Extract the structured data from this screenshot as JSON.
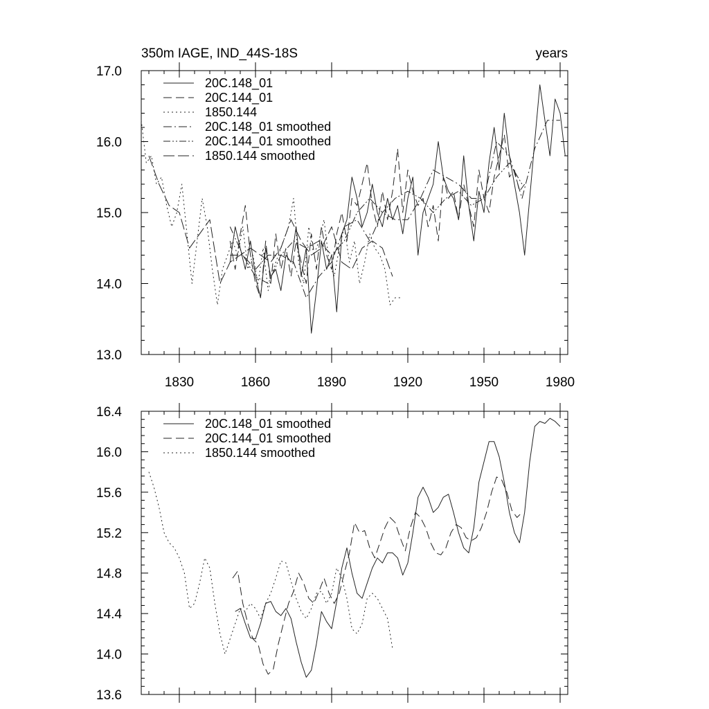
{
  "figure": {
    "title_left": "350m IAGE, IND_44S-18S",
    "title_right": "years"
  },
  "chart_data": [
    {
      "type": "line",
      "xlim": [
        1815,
        1983
      ],
      "ylim": [
        13.0,
        17.0
      ],
      "x_ticks": [
        1830,
        1860,
        1890,
        1920,
        1950,
        1980
      ],
      "x_tick_labels": [
        "1830",
        "1860",
        "1890",
        "1920",
        "1950",
        "1980"
      ],
      "y_ticks": [
        13.0,
        14.0,
        15.0,
        16.0,
        17.0
      ],
      "y_tick_labels": [
        "13.0",
        "14.0",
        "15.0",
        "16.0",
        "17.0"
      ],
      "legend_placement": "top-left",
      "series": [
        {
          "name": "20C.148_01",
          "style": "solid",
          "x": [
            1850,
            1852,
            1854,
            1856,
            1858,
            1860,
            1862,
            1864,
            1866,
            1868,
            1870,
            1872,
            1874,
            1876,
            1878,
            1880,
            1882,
            1884,
            1886,
            1888,
            1890,
            1892,
            1894,
            1896,
            1898,
            1900,
            1902,
            1904,
            1906,
            1908,
            1910,
            1912,
            1914,
            1916,
            1918,
            1920,
            1922,
            1924,
            1926,
            1928,
            1930,
            1932,
            1934,
            1936,
            1938,
            1940,
            1942,
            1944,
            1946,
            1948,
            1950,
            1952,
            1954,
            1956,
            1958,
            1960,
            1962,
            1964,
            1966,
            1968,
            1970,
            1972,
            1974,
            1976,
            1978,
            1980,
            1982
          ],
          "values": [
            14.3,
            14.8,
            14.5,
            14.2,
            14.6,
            14.1,
            13.8,
            14.5,
            14.1,
            14.2,
            13.9,
            14.4,
            14.3,
            14.8,
            14.1,
            14.5,
            13.3,
            13.9,
            14.6,
            14.2,
            14.4,
            13.6,
            14.7,
            14.9,
            15.5,
            15.2,
            14.8,
            15.0,
            15.4,
            15.0,
            14.8,
            15.2,
            14.9,
            15.1,
            14.7,
            15.2,
            15.5,
            14.4,
            15.0,
            15.2,
            15.4,
            16.0,
            15.5,
            15.3,
            15.2,
            14.9,
            15.8,
            15.1,
            14.6,
            15.3,
            15.0,
            15.7,
            16.2,
            15.6,
            16.4,
            15.8,
            15.4,
            15.0,
            14.4,
            15.2,
            16.0,
            16.8,
            16.3,
            15.8,
            16.6,
            16.4,
            15.8
          ]
        },
        {
          "name": "20C.144_01",
          "style": "dashed",
          "x": [
            1850,
            1852,
            1854,
            1856,
            1858,
            1860,
            1862,
            1864,
            1866,
            1868,
            1870,
            1872,
            1874,
            1876,
            1878,
            1880,
            1882,
            1884,
            1886,
            1888,
            1890,
            1892,
            1894,
            1896,
            1898,
            1900,
            1902,
            1904,
            1906,
            1908,
            1910,
            1912,
            1914,
            1916,
            1918,
            1920,
            1922,
            1924,
            1926,
            1928,
            1930,
            1932,
            1934,
            1936,
            1938,
            1940,
            1942,
            1944,
            1946,
            1948,
            1950,
            1952,
            1954,
            1956,
            1958,
            1960,
            1962,
            1964,
            1966
          ],
          "values": [
            14.6,
            14.2,
            14.7,
            15.1,
            14.4,
            14.0,
            13.8,
            14.6,
            14.0,
            14.7,
            14.2,
            14.5,
            14.1,
            14.6,
            14.3,
            14.0,
            14.7,
            14.2,
            14.8,
            14.4,
            14.2,
            14.7,
            15.0,
            14.6,
            15.2,
            15.1,
            15.4,
            15.7,
            15.1,
            14.8,
            15.3,
            14.9,
            15.3,
            15.9,
            15.0,
            15.6,
            15.3,
            15.1,
            15.2,
            14.8,
            15.1,
            14.6,
            15.5,
            15.2,
            15.3,
            14.9,
            15.4,
            15.1,
            14.8,
            15.6,
            15.2,
            15.0,
            15.5,
            15.8,
            16.1,
            15.5,
            15.6,
            15.3,
            15.4
          ]
        },
        {
          "name": "1850.144",
          "style": "dotted",
          "x": [
            1815,
            1817,
            1819,
            1821,
            1823,
            1825,
            1827,
            1829,
            1831,
            1833,
            1835,
            1837,
            1839,
            1841,
            1843,
            1845,
            1847,
            1849,
            1851,
            1853,
            1855,
            1857,
            1859,
            1861,
            1863,
            1865,
            1867,
            1869,
            1871,
            1873,
            1875,
            1877,
            1879,
            1881,
            1883,
            1885,
            1887,
            1889,
            1891,
            1893,
            1895,
            1897,
            1899,
            1901,
            1903,
            1905,
            1907,
            1909,
            1911,
            1913,
            1915,
            1917
          ],
          "values": [
            16.3,
            15.7,
            15.8,
            15.4,
            15.5,
            15.1,
            14.8,
            15.0,
            15.4,
            14.7,
            14.0,
            14.6,
            15.2,
            14.8,
            14.2,
            13.7,
            14.2,
            14.4,
            14.6,
            14.4,
            14.8,
            14.2,
            14.4,
            14.0,
            14.5,
            13.9,
            14.2,
            14.4,
            14.6,
            14.8,
            15.2,
            14.3,
            14.0,
            14.8,
            14.4,
            14.6,
            14.9,
            14.3,
            14.1,
            14.5,
            14.8,
            14.3,
            14.6,
            14.0,
            14.3,
            14.7,
            14.5,
            14.4,
            14.2,
            13.7,
            13.8,
            13.8
          ]
        },
        {
          "name": "20C.148_01 smoothed",
          "style": "dash-dot",
          "x": [
            1850,
            1855,
            1860,
            1865,
            1870,
            1875,
            1880,
            1885,
            1890,
            1895,
            1900,
            1905,
            1910,
            1915,
            1920,
            1925,
            1930,
            1935,
            1940,
            1945,
            1950,
            1955,
            1960,
            1965,
            1970,
            1975,
            1980
          ],
          "values": [
            14.4,
            14.4,
            14.2,
            14.4,
            14.4,
            14.3,
            13.8,
            14.1,
            14.3,
            14.8,
            14.9,
            14.6,
            15.0,
            14.9,
            14.9,
            15.2,
            15.6,
            15.5,
            15.4,
            15.2,
            15.2,
            16.0,
            15.8,
            15.2,
            15.9,
            16.3,
            16.3
          ]
        },
        {
          "name": "20C.144_01 smoothed",
          "style": "dash-dot-dot",
          "x": [
            1850,
            1855,
            1860,
            1865,
            1870,
            1875,
            1880,
            1885,
            1890,
            1895,
            1900,
            1905,
            1910,
            1915,
            1920,
            1925,
            1930,
            1935,
            1940,
            1945,
            1950,
            1955,
            1960,
            1965
          ],
          "values": [
            14.8,
            14.4,
            14.1,
            14.0,
            14.4,
            14.6,
            14.5,
            14.6,
            14.4,
            14.6,
            15.0,
            15.2,
            15.0,
            15.2,
            15.3,
            15.2,
            15.0,
            15.2,
            15.3,
            15.1,
            15.2,
            15.5,
            15.7,
            15.4
          ]
        },
        {
          "name": "1850.144 smoothed",
          "style": "long-dash",
          "x": [
            1818,
            1822,
            1826,
            1830,
            1834,
            1838,
            1842,
            1846,
            1850,
            1854,
            1858,
            1862,
            1866,
            1870,
            1874,
            1878,
            1882,
            1886,
            1890,
            1894,
            1898,
            1902,
            1906,
            1910,
            1914
          ],
          "values": [
            15.8,
            15.4,
            15.1,
            15.0,
            14.5,
            14.7,
            14.9,
            14.0,
            14.3,
            14.4,
            14.5,
            14.4,
            14.3,
            14.5,
            14.9,
            14.6,
            14.4,
            14.5,
            14.8,
            14.3,
            14.2,
            14.5,
            14.6,
            14.5,
            14.1
          ]
        }
      ]
    },
    {
      "type": "line",
      "xlim": [
        1815,
        1983
      ],
      "ylim": [
        13.6,
        16.4
      ],
      "x_ticks": [
        1830,
        1860,
        1890,
        1920,
        1950,
        1980
      ],
      "y_ticks": [
        13.6,
        14.0,
        14.4,
        14.8,
        15.2,
        15.6,
        16.0,
        16.4
      ],
      "y_tick_labels": [
        "13.6",
        "14.0",
        "14.4",
        "14.8",
        "15.2",
        "15.6",
        "16.0",
        "16.4"
      ],
      "legend_placement": "top-left",
      "series": [
        {
          "name": "20C.148_01 smoothed",
          "style": "solid",
          "x": [
            1852,
            1854,
            1856,
            1858,
            1860,
            1862,
            1864,
            1866,
            1868,
            1870,
            1872,
            1874,
            1876,
            1878,
            1880,
            1882,
            1884,
            1886,
            1888,
            1890,
            1892,
            1894,
            1896,
            1898,
            1900,
            1902,
            1904,
            1906,
            1908,
            1910,
            1912,
            1914,
            1916,
            1918,
            1920,
            1922,
            1924,
            1926,
            1928,
            1930,
            1932,
            1934,
            1936,
            1938,
            1940,
            1942,
            1944,
            1946,
            1948,
            1950,
            1952,
            1954,
            1956,
            1958,
            1960,
            1962,
            1964,
            1966,
            1968,
            1970,
            1972,
            1974,
            1976,
            1978,
            1980
          ],
          "values": [
            14.42,
            14.45,
            14.3,
            14.16,
            14.15,
            14.3,
            14.5,
            14.52,
            14.42,
            14.38,
            14.45,
            14.35,
            14.12,
            13.92,
            13.77,
            13.84,
            14.1,
            14.42,
            14.32,
            14.25,
            14.52,
            14.85,
            15.05,
            14.8,
            14.6,
            14.55,
            14.7,
            14.85,
            14.95,
            14.9,
            15.0,
            15.0,
            14.95,
            14.78,
            14.9,
            15.2,
            15.55,
            15.65,
            15.55,
            15.4,
            15.45,
            15.55,
            15.58,
            15.4,
            15.2,
            15.05,
            15.0,
            15.25,
            15.7,
            15.9,
            16.1,
            16.1,
            15.95,
            15.7,
            15.4,
            15.2,
            15.1,
            15.4,
            15.9,
            16.25,
            16.3,
            16.28,
            16.33,
            16.3,
            16.25
          ]
        },
        {
          "name": "20C.144_01 smoothed",
          "style": "dashed",
          "x": [
            1851,
            1853,
            1855,
            1857,
            1859,
            1861,
            1863,
            1865,
            1867,
            1869,
            1871,
            1873,
            1875,
            1877,
            1879,
            1881,
            1883,
            1885,
            1887,
            1889,
            1891,
            1893,
            1895,
            1897,
            1899,
            1901,
            1903,
            1905,
            1907,
            1909,
            1911,
            1913,
            1915,
            1917,
            1919,
            1921,
            1923,
            1925,
            1927,
            1929,
            1931,
            1933,
            1935,
            1937,
            1939,
            1941,
            1943,
            1945,
            1947,
            1949,
            1951,
            1953,
            1955,
            1957,
            1959,
            1961,
            1963,
            1965
          ],
          "values": [
            14.75,
            14.82,
            14.5,
            14.3,
            14.15,
            14.1,
            13.9,
            13.8,
            13.85,
            14.1,
            14.3,
            14.5,
            14.62,
            14.8,
            14.7,
            14.55,
            14.5,
            14.62,
            14.75,
            14.6,
            14.5,
            14.6,
            14.8,
            15.0,
            15.3,
            15.2,
            15.22,
            15.05,
            14.95,
            15.1,
            15.25,
            15.35,
            15.3,
            15.15,
            15.02,
            15.25,
            15.4,
            15.35,
            15.25,
            15.1,
            15.0,
            14.98,
            15.05,
            15.2,
            15.28,
            15.25,
            15.15,
            15.12,
            15.15,
            15.25,
            15.4,
            15.6,
            15.75,
            15.72,
            15.6,
            15.42,
            15.35,
            15.4
          ]
        },
        {
          "name": "1850.144 smoothed",
          "style": "dotted",
          "x": [
            1818,
            1820,
            1822,
            1824,
            1826,
            1828,
            1830,
            1832,
            1834,
            1836,
            1838,
            1840,
            1842,
            1844,
            1846,
            1848,
            1850,
            1852,
            1854,
            1856,
            1858,
            1860,
            1862,
            1864,
            1866,
            1868,
            1870,
            1872,
            1874,
            1876,
            1878,
            1880,
            1882,
            1884,
            1886,
            1888,
            1890,
            1892,
            1894,
            1896,
            1898,
            1900,
            1902,
            1904,
            1906,
            1908,
            1910,
            1912,
            1914
          ],
          "values": [
            15.8,
            15.65,
            15.45,
            15.2,
            15.1,
            15.05,
            14.95,
            14.8,
            14.45,
            14.5,
            14.7,
            14.95,
            14.85,
            14.5,
            14.2,
            14.0,
            14.15,
            14.3,
            14.45,
            14.42,
            14.5,
            14.45,
            14.35,
            14.5,
            14.6,
            14.75,
            14.92,
            14.9,
            14.72,
            14.55,
            14.42,
            14.35,
            14.45,
            14.6,
            14.62,
            14.5,
            14.6,
            14.85,
            14.75,
            14.55,
            14.25,
            14.2,
            14.3,
            14.55,
            14.6,
            14.55,
            14.45,
            14.35,
            14.05
          ]
        }
      ]
    }
  ]
}
